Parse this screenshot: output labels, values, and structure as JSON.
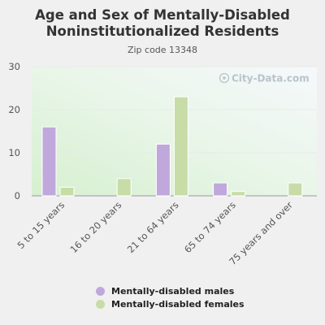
{
  "chart_data": {
    "type": "bar",
    "title": "Age and Sex of Mentally-Disabled Noninstitutionalized Residents",
    "subtitle": "Zip code 13348",
    "categories": [
      "5 to 15 years",
      "16 to 20 years",
      "21 to 64 years",
      "65 to 74 years",
      "75 years and over"
    ],
    "series": [
      {
        "name": "Mentally-disabled males",
        "values": [
          16,
          0,
          12,
          3,
          0
        ],
        "color": "#c0a8dc"
      },
      {
        "name": "Mentally-disabled females",
        "values": [
          2,
          4,
          23,
          1,
          3
        ],
        "color": "#c8dca8"
      }
    ],
    "yticks": [
      0,
      10,
      20,
      30
    ],
    "ylim": [
      0,
      30
    ],
    "grid": true,
    "legend": "bottom"
  },
  "watermark": "City-Data.com"
}
